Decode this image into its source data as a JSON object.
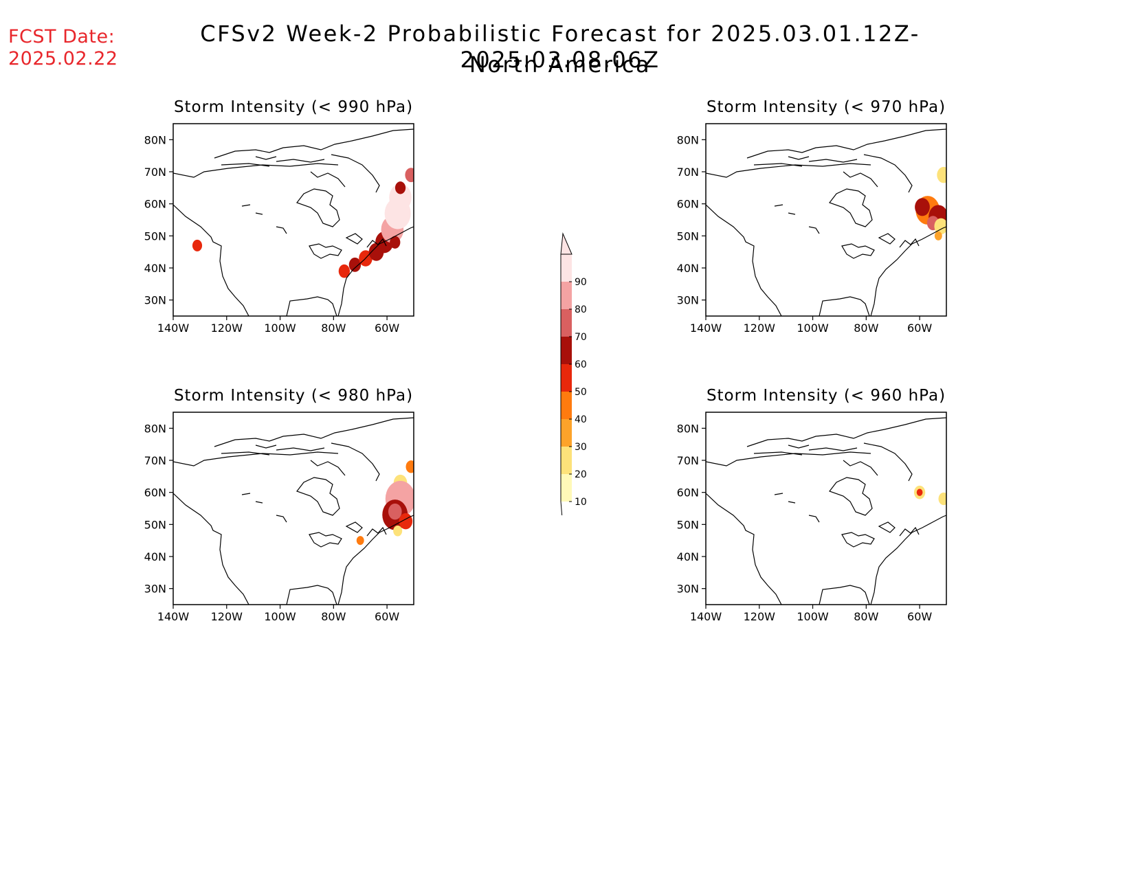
{
  "header": {
    "fcst_label": "FCST Date:",
    "fcst_date": "2025.02.22",
    "title": "CFSv2 Week-2 Probabilistic Forecast for 2025.03.01.12Z-2025.03.08.06Z",
    "subtitle": "North America"
  },
  "axes": {
    "lat_ticks": [
      "80N",
      "70N",
      "60N",
      "50N",
      "40N",
      "30N"
    ],
    "lat_values": [
      80,
      70,
      60,
      50,
      40,
      30
    ],
    "lon_ticks": [
      "140W",
      "120W",
      "100W",
      "80W",
      "60W"
    ],
    "lon_values": [
      -140,
      -120,
      -100,
      -80,
      -60
    ],
    "lon_range": [
      -140,
      -50
    ],
    "lat_range": [
      25,
      85
    ]
  },
  "colorbar": {
    "levels": [
      "10",
      "20",
      "30",
      "40",
      "50",
      "60",
      "70",
      "80",
      "90"
    ],
    "colors": [
      "#fff9b8",
      "#fde27a",
      "#fda32a",
      "#ff7b0f",
      "#e8280c",
      "#a8100a",
      "#d96060",
      "#f4a3a3",
      "#fde4e4"
    ]
  },
  "panels": [
    {
      "title": "Storm Intensity (< 990 hPa)",
      "blobs": [
        {
          "lon": -131,
          "lat": 47,
          "r": 1.3,
          "c": 4
        },
        {
          "lon": -76,
          "lat": 39,
          "r": 1.5,
          "c": 4
        },
        {
          "lon": -72,
          "lat": 41,
          "r": 1.6,
          "c": 5
        },
        {
          "lon": -68,
          "lat": 43,
          "r": 1.8,
          "c": 4
        },
        {
          "lon": -64,
          "lat": 45,
          "r": 2.0,
          "c": 5
        },
        {
          "lon": -61,
          "lat": 48,
          "r": 2.4,
          "c": 5
        },
        {
          "lon": -58,
          "lat": 52,
          "r": 3.0,
          "c": 7
        },
        {
          "lon": -56,
          "lat": 57,
          "r": 3.5,
          "c": 8
        },
        {
          "lon": -55,
          "lat": 62,
          "r": 3.0,
          "c": 8
        },
        {
          "lon": -55,
          "lat": 65,
          "r": 1.4,
          "c": 5
        },
        {
          "lon": -51,
          "lat": 69,
          "r": 1.6,
          "c": 6
        },
        {
          "lon": -57,
          "lat": 48,
          "r": 1.4,
          "c": 5
        }
      ]
    },
    {
      "title": "Storm Intensity (< 970 hPa)",
      "blobs": [
        {
          "lon": -51,
          "lat": 69,
          "r": 1.8,
          "c": 1
        },
        {
          "lon": -57,
          "lat": 58,
          "r": 3.2,
          "c": 3
        },
        {
          "lon": -59,
          "lat": 59,
          "r": 2.0,
          "c": 5
        },
        {
          "lon": -53,
          "lat": 56,
          "r": 2.6,
          "c": 5
        },
        {
          "lon": -55,
          "lat": 54,
          "r": 1.6,
          "c": 6
        },
        {
          "lon": -52,
          "lat": 53,
          "r": 1.8,
          "c": 1
        },
        {
          "lon": -53,
          "lat": 50,
          "r": 1.0,
          "c": 2
        }
      ]
    },
    {
      "title": "Storm Intensity (< 980 hPa)",
      "blobs": [
        {
          "lon": -51,
          "lat": 68,
          "r": 1.4,
          "c": 3
        },
        {
          "lon": -55,
          "lat": 63,
          "r": 1.8,
          "c": 1
        },
        {
          "lon": -55,
          "lat": 58,
          "r": 4.0,
          "c": 7
        },
        {
          "lon": -57,
          "lat": 53,
          "r": 3.4,
          "c": 5
        },
        {
          "lon": -57,
          "lat": 54,
          "r": 1.8,
          "c": 6
        },
        {
          "lon": -53,
          "lat": 51,
          "r": 1.8,
          "c": 4
        },
        {
          "lon": -56,
          "lat": 48,
          "r": 1.2,
          "c": 1
        },
        {
          "lon": -70,
          "lat": 45,
          "r": 1.0,
          "c": 3
        }
      ]
    },
    {
      "title": "Storm Intensity (< 960 hPa)",
      "blobs": [
        {
          "lon": -60,
          "lat": 60,
          "r": 1.5,
          "c": 1
        },
        {
          "lon": -60,
          "lat": 60,
          "r": 0.8,
          "c": 4
        },
        {
          "lon": -51,
          "lat": 58,
          "r": 1.4,
          "c": 1
        }
      ]
    }
  ]
}
